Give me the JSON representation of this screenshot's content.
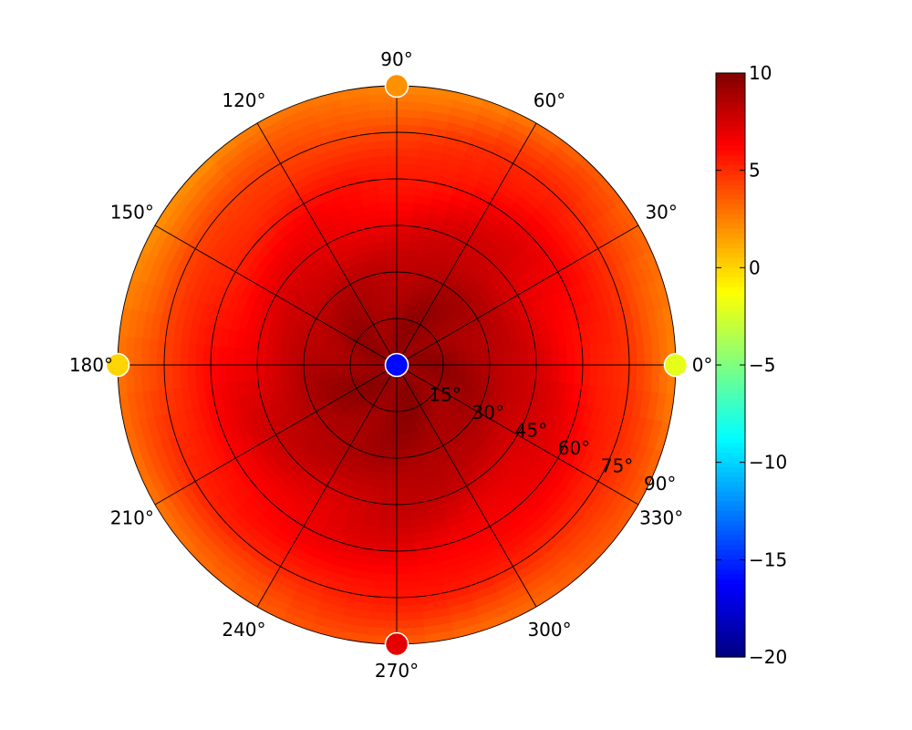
{
  "chart_data": {
    "type": "heatmap",
    "projection": "polar",
    "title": "",
    "angular_ticks": [
      "0°",
      "30°",
      "60°",
      "90°",
      "120°",
      "150°",
      "180°",
      "210°",
      "240°",
      "270°",
      "300°",
      "330°"
    ],
    "radial_ticks": [
      "15°",
      "30°",
      "45°",
      "60°",
      "75°",
      "90°"
    ],
    "radial_range": [
      0,
      90
    ],
    "grid": true,
    "colormap": "jet",
    "colorbar": {
      "range": [
        -20,
        10
      ],
      "ticks": [
        "10",
        "5",
        "0",
        "−5",
        "−10",
        "−15",
        "−20"
      ],
      "placement": "right"
    },
    "radial_profile": {
      "r": [
        0,
        15,
        30,
        45,
        60,
        75,
        90
      ],
      "value": [
        9.5,
        9.3,
        8.6,
        7.5,
        6.3,
        5.0,
        3.0
      ]
    },
    "azimuth_modulation": [
      {
        "azimuth": 0,
        "delta": -0.3
      },
      {
        "azimuth": 45,
        "delta": 0.2
      },
      {
        "azimuth": 90,
        "delta": -0.6
      },
      {
        "azimuth": 135,
        "delta": -0.8
      },
      {
        "azimuth": 180,
        "delta": -0.5
      },
      {
        "azimuth": 225,
        "delta": 0.3
      },
      {
        "azimuth": 270,
        "delta": 0.5
      },
      {
        "azimuth": 315,
        "delta": 0.3
      }
    ],
    "markers": [
      {
        "azimuth": 0,
        "r": 0,
        "value": -16
      },
      {
        "azimuth": 0,
        "r": 90,
        "value": -2
      },
      {
        "azimuth": 90,
        "r": 90,
        "value": 2
      },
      {
        "azimuth": 180,
        "r": 90,
        "value": 0
      },
      {
        "azimuth": 270,
        "r": 90,
        "value": 7
      }
    ]
  }
}
